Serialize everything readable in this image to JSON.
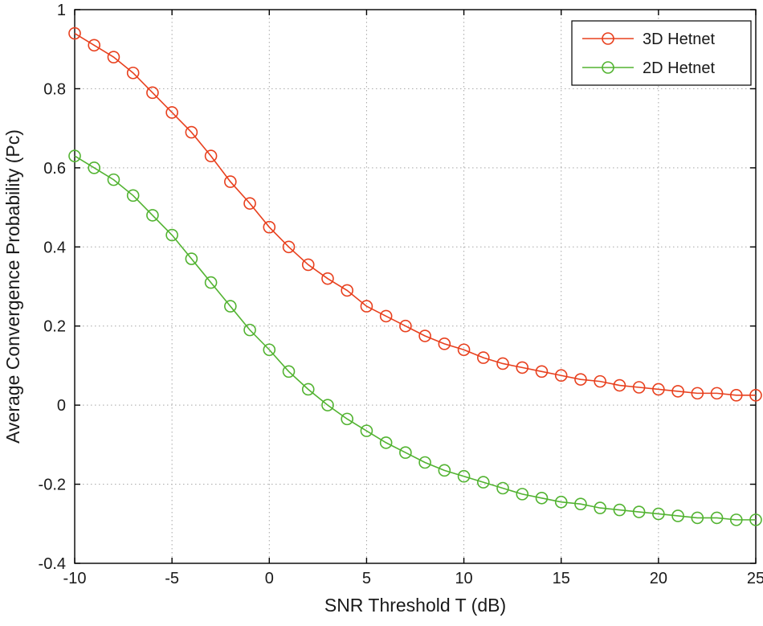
{
  "chart_data": {
    "type": "line",
    "title": "",
    "xlabel": "SNR Threshold T (dB)",
    "ylabel": "Average Convergence Probability (Pc)",
    "xlim": [
      -10,
      25
    ],
    "ylim": [
      -0.4,
      1
    ],
    "xticks": [
      -10,
      -5,
      0,
      5,
      10,
      15,
      20,
      25
    ],
    "xtick_labels": [
      "-10",
      "-5",
      "0",
      "5",
      "10",
      "15",
      "20",
      "25"
    ],
    "yticks": [
      -0.4,
      -0.2,
      0,
      0.2,
      0.4,
      0.6,
      0.8,
      1
    ],
    "ytick_labels": [
      "-0.4",
      "-0.2",
      "0",
      "0.2",
      "0.4",
      "0.6",
      "0.8",
      "1"
    ],
    "grid": true,
    "grid_color": "#a6a6a6",
    "frame_color": "#000000",
    "legend_position": "top-right",
    "x": [
      -10,
      -9,
      -8,
      -7,
      -6,
      -5,
      -4,
      -3,
      -2,
      -1,
      0,
      1,
      2,
      3,
      4,
      5,
      6,
      7,
      8,
      9,
      10,
      11,
      12,
      13,
      14,
      15,
      16,
      17,
      18,
      19,
      20,
      21,
      22,
      23,
      24,
      25
    ],
    "series": [
      {
        "name": "3D Hetnet",
        "color": "#e8401e",
        "marker": "circle",
        "values": [
          0.94,
          0.91,
          0.88,
          0.84,
          0.79,
          0.74,
          0.69,
          0.63,
          0.565,
          0.51,
          0.45,
          0.4,
          0.355,
          0.32,
          0.29,
          0.25,
          0.225,
          0.2,
          0.175,
          0.155,
          0.14,
          0.12,
          0.105,
          0.095,
          0.085,
          0.075,
          0.065,
          0.06,
          0.05,
          0.045,
          0.04,
          0.035,
          0.03,
          0.03,
          0.025,
          0.025
        ]
      },
      {
        "name": "2D Hetnet",
        "color": "#52b331",
        "marker": "circle",
        "values": [
          0.63,
          0.6,
          0.57,
          0.53,
          0.48,
          0.43,
          0.37,
          0.31,
          0.25,
          0.19,
          0.14,
          0.085,
          0.04,
          0.0,
          -0.035,
          -0.065,
          -0.095,
          -0.12,
          -0.145,
          -0.165,
          -0.18,
          -0.195,
          -0.21,
          -0.225,
          -0.235,
          -0.245,
          -0.25,
          -0.26,
          -0.265,
          -0.27,
          -0.275,
          -0.28,
          -0.285,
          -0.285,
          -0.29,
          -0.29
        ]
      }
    ]
  }
}
